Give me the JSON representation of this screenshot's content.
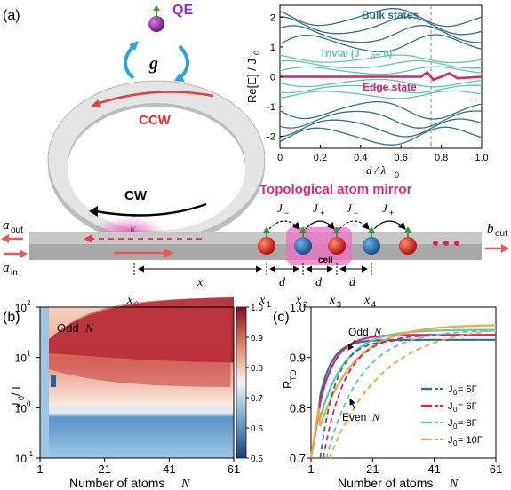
{
  "panel_a": {
    "label": "(a)",
    "qe_label": "QE",
    "g_label": "g",
    "ccw_label": "CCW",
    "cw_label": "CW",
    "kappa_label": "κ",
    "mirror_title": "Topological atom mirror",
    "cell_label": "cell",
    "a_out": "a",
    "a_out_sub": "out",
    "a_in": "a",
    "a_in_sub": "in",
    "b_out": "b",
    "b_out_sub": "out",
    "j_minus": "J",
    "j_minus_sub": "−",
    "j_plus": "J",
    "j_plus_sub": "+",
    "x_labels": [
      "x",
      "0",
      "x",
      "x",
      "1",
      "x",
      "2",
      "x",
      "3",
      "x",
      "4"
    ],
    "d_label": "d",
    "x_label": "x"
  },
  "inset": {
    "bulk_label": "Bulk states",
    "trivial_label": "Trivial (J",
    "trivial_sub": "0",
    "trivial_tail": " = 0)",
    "edge_label": "Edge state",
    "ylabel": "Re[E] / J",
    "ylabel_sub": "0",
    "xlabel": "d / λ",
    "xlabel_sub": "0",
    "xticks": [
      "0",
      "0.2",
      "0.4",
      "0.6",
      "0.8",
      "1.0"
    ],
    "yticks": [
      "2",
      "1",
      "0",
      "-1",
      "-2"
    ],
    "colors": {
      "bulk": "#2f6f8f",
      "trivial": "#5ec9a3",
      "edge": "#d6246e"
    }
  },
  "panel_b": {
    "label": "(b)",
    "annot": "Odd",
    "annot_n": "N",
    "ylabel": "J",
    "ylabel_sub": "0",
    "ylabel_tail": " / Γ",
    "xlabel": "Number of atoms",
    "xlabel_n": "N",
    "xticks": [
      "1",
      "21",
      "41",
      "61"
    ],
    "yticks": [
      "10",
      "10",
      "10",
      "10"
    ],
    "yexp": [
      "2",
      "1",
      "0",
      "-1"
    ],
    "cbar_ticks": [
      "1.0",
      "0.9",
      "0.8",
      "0.7",
      "0.6",
      "0.5"
    ]
  },
  "panel_c": {
    "label": "(c)",
    "ylabel": "R",
    "ylabel_sub": "TO",
    "xlabel": "Number of atoms",
    "xlabel_n": "N",
    "xticks": [
      "1",
      "21",
      "41",
      "61"
    ],
    "yticks": [
      "1.0",
      "0.9",
      "0.8",
      "0.7"
    ],
    "odd": "Odd",
    "even": "Even",
    "n": "N",
    "legend": [
      {
        "label": "J",
        "sub": "0",
        "tail": " = 5Γ",
        "color": "#2f6f8f"
      },
      {
        "label": "J",
        "sub": "0",
        "tail": " = 6Γ",
        "color": "#d6246e"
      },
      {
        "label": "J",
        "sub": "0",
        "tail": " = 8Γ",
        "color": "#5ec9a3"
      },
      {
        "label": "J",
        "sub": "0",
        "tail": " = 10Γ",
        "color": "#f2a93b"
      }
    ]
  },
  "chart_data": [
    {
      "type": "line",
      "xlabel": "d / λ0",
      "ylabel": "Re[E] / J0",
      "xlim": [
        0,
        1.0
      ],
      "ylim": [
        -2.4,
        2.4
      ],
      "series": [
        {
          "name": "Bulk states",
          "note": "multiple bands upper |E|>1 and lower |E|>1"
        },
        {
          "name": "Trivial (J0 = 0)",
          "note": "bands near 0, roughly ±0.6"
        },
        {
          "name": "Edge state",
          "x": [
            0,
            0.75,
            1.0
          ],
          "values": [
            0,
            0,
            0
          ]
        }
      ]
    },
    {
      "type": "heatmap",
      "xlabel": "Number of atoms N",
      "ylabel": "J0 / Γ",
      "x_range": [
        1,
        61
      ],
      "y_range_log10": [
        -1,
        2
      ],
      "color_range": [
        0.5,
        1.0
      ]
    },
    {
      "type": "line",
      "xlabel": "Number of atoms N",
      "ylabel": "RTO",
      "xlim": [
        1,
        61
      ],
      "ylim": [
        0.7,
        1.0
      ],
      "series": [
        {
          "name": "J0 = 5Γ (odd)",
          "x": [
            1,
            5,
            11,
            21,
            41,
            61
          ],
          "values": [
            0.7,
            0.85,
            0.93,
            0.935,
            0.935,
            0.935
          ]
        },
        {
          "name": "J0 = 6Γ (odd)",
          "x": [
            1,
            5,
            11,
            21,
            41,
            61
          ],
          "values": [
            0.7,
            0.85,
            0.93,
            0.945,
            0.945,
            0.945
          ]
        },
        {
          "name": "J0 = 8Γ (odd)",
          "x": [
            1,
            5,
            11,
            21,
            41,
            61
          ],
          "values": [
            0.7,
            0.84,
            0.9,
            0.95,
            0.955,
            0.955
          ]
        },
        {
          "name": "J0 = 10Γ (odd)",
          "x": [
            1,
            5,
            11,
            21,
            41,
            61
          ],
          "values": [
            0.7,
            0.82,
            0.87,
            0.95,
            0.965,
            0.965
          ]
        },
        {
          "name": "J0 = 5Γ (even)",
          "x": [
            4,
            10,
            21,
            41,
            61
          ],
          "values": [
            0.7,
            0.86,
            0.93,
            0.935,
            0.935
          ]
        },
        {
          "name": "J0 = 6Γ (even)",
          "x": [
            4,
            10,
            21,
            41,
            61
          ],
          "values": [
            0.7,
            0.83,
            0.93,
            0.945,
            0.945
          ]
        },
        {
          "name": "J0 = 8Γ (even)",
          "x": [
            4,
            10,
            21,
            41,
            61
          ],
          "values": [
            0.7,
            0.8,
            0.9,
            0.95,
            0.955
          ]
        },
        {
          "name": "J0 = 10Γ (even)",
          "x": [
            4,
            10,
            21,
            41,
            61
          ],
          "values": [
            0.7,
            0.78,
            0.84,
            0.92,
            0.965
          ]
        }
      ]
    }
  ]
}
